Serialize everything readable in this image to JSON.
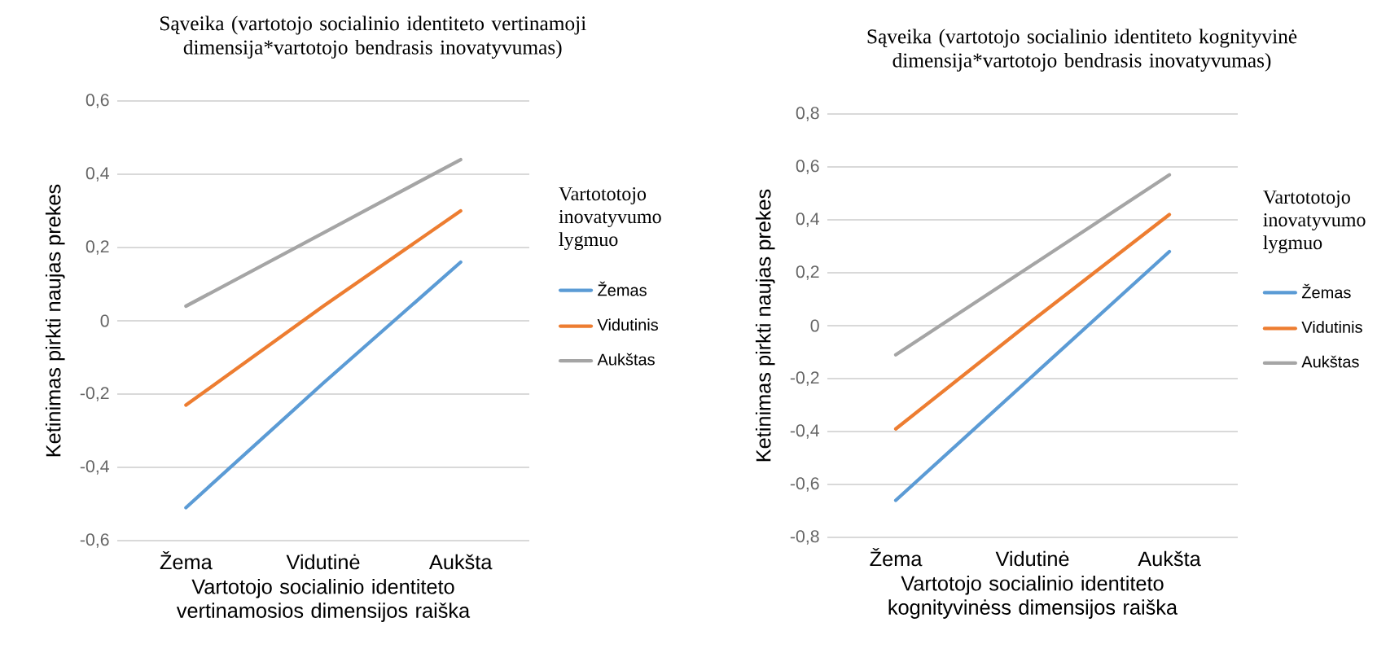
{
  "chart_data": [
    {
      "type": "line",
      "title": "Sąveika (vartotojo socialinio identiteto vertinamoji dimensija*vartotojo bendrasis inovatyvumas)",
      "xlabel": "Vartotojo socialinio identiteto vertinamosios dimensijos raiška",
      "ylabel": "Ketinimas pirkti naujas prekes",
      "legend_title": "Vartototojo inovatyvumo lygmuo",
      "legend": "right",
      "grid": "y",
      "marker": "none",
      "categories": [
        "Žema",
        "Vidutinė",
        "Aukšta"
      ],
      "ylim": [
        -0.6,
        0.6
      ],
      "yticks": [
        {
          "value": -0.6,
          "label": "-0,6"
        },
        {
          "value": -0.4,
          "label": "-0,4"
        },
        {
          "value": -0.2,
          "label": "-0,2"
        },
        0,
        {
          "value": 0.2,
          "label": "0,2"
        },
        {
          "value": 0.4,
          "label": "0,4"
        },
        {
          "value": 0.6,
          "label": "0,6"
        }
      ],
      "series": [
        {
          "name": "Žemas",
          "color": "#5b9bd5",
          "values": [
            -0.51,
            -0.17,
            0.16
          ]
        },
        {
          "name": "Vidutinis",
          "color": "#ed7d31",
          "values": [
            -0.23,
            0.04,
            0.3
          ]
        },
        {
          "name": "Aukštas",
          "color": "#a5a5a5",
          "values": [
            0.04,
            0.24,
            0.44
          ]
        }
      ]
    },
    {
      "type": "line",
      "title": "Sąveika (vartotojo socialinio identiteto kognityvinė dimensija*vartotojo bendrasis inovatyvumas)",
      "xlabel": "Vartotojo socialinio identiteto kognityvinėss dimensijos raiška",
      "ylabel": "Ketinimas pirkti naujas prekes",
      "legend_title": "Vartototojo inovatyvumo lygmuo",
      "legend": "right",
      "grid": "y",
      "marker": "none",
      "categories": [
        "Žema",
        "Vidutinė",
        "Aukšta"
      ],
      "ylim": [
        -0.8,
        0.8
      ],
      "yticks": [
        {
          "value": -0.8,
          "label": "-0,8"
        },
        {
          "value": -0.6,
          "label": "-0,6"
        },
        {
          "value": -0.4,
          "label": "-0,4"
        },
        {
          "value": -0.2,
          "label": "-0,2"
        },
        0,
        {
          "value": 0.2,
          "label": "0,2"
        },
        {
          "value": 0.4,
          "label": "0,4"
        },
        {
          "value": 0.6,
          "label": "0,6"
        },
        {
          "value": 0.8,
          "label": "0,8"
        }
      ],
      "series": [
        {
          "name": "Žemas",
          "color": "#5b9bd5",
          "values": [
            -0.66,
            -0.19,
            0.28
          ]
        },
        {
          "name": "Vidutinis",
          "color": "#ed7d31",
          "values": [
            -0.39,
            0.02,
            0.42
          ]
        },
        {
          "name": "Aukštas",
          "color": "#a5a5a5",
          "values": [
            -0.11,
            0.23,
            0.57
          ]
        }
      ]
    }
  ]
}
